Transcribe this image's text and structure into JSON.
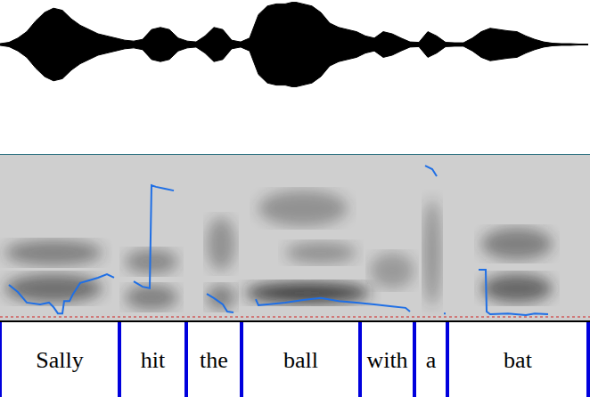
{
  "waveform": {
    "x": [
      0,
      0.025,
      0.05,
      0.075,
      0.1,
      0.125,
      0.15,
      0.175,
      0.2,
      0.225,
      0.25,
      0.275,
      0.3,
      0.325,
      0.35,
      0.375,
      0.4,
      0.425,
      0.45,
      0.475,
      0.5,
      0.525,
      0.55,
      0.575,
      0.6,
      0.625,
      0.65,
      0.675,
      0.7,
      0.725,
      0.75,
      0.775,
      0.8,
      0.825,
      0.85,
      0.875,
      0.9,
      0.925,
      0.95,
      0.975,
      1.0,
      1.025,
      1.05,
      1.075,
      1.1,
      1.125,
      1.15,
      1.175,
      1.2,
      1.225,
      1.25,
      1.275,
      1.3,
      1.325,
      1.35,
      1.375,
      1.4,
      1.425,
      1.45,
      1.475,
      1.5,
      1.525,
      1.55,
      1.575,
      1.6,
      1.625,
      1.65
    ],
    "envelope": [
      0.02,
      0.05,
      0.15,
      0.3,
      0.55,
      0.75,
      0.85,
      0.8,
      0.6,
      0.45,
      0.35,
      0.25,
      0.2,
      0.15,
      0.1,
      0.08,
      0.12,
      0.35,
      0.4,
      0.35,
      0.15,
      0.08,
      0.06,
      0.2,
      0.4,
      0.35,
      0.1,
      0.06,
      0.15,
      0.7,
      0.9,
      0.95,
      0.95,
      1.0,
      0.95,
      0.9,
      0.75,
      0.5,
      0.4,
      0.35,
      0.3,
      0.2,
      0.15,
      0.3,
      0.25,
      0.15,
      0.06,
      0.05,
      0.3,
      0.2,
      0.05,
      0.04,
      0.04,
      0.15,
      0.3,
      0.38,
      0.35,
      0.32,
      0.3,
      0.2,
      0.12,
      0.06,
      0.03,
      0.02,
      0.02,
      0.01,
      0.01
    ],
    "xlim": [
      0,
      1.655
    ],
    "ylim": [
      -1,
      1
    ],
    "color": "#000000"
  },
  "chart_data": {
    "type": "line",
    "x": [
      0.025,
      0.05,
      0.075,
      0.1125,
      0.1375,
      0.15,
      0.1625,
      0.175,
      0.18,
      0.195,
      0.205,
      0.225,
      0.25,
      0.275,
      0.3,
      0.32,
      0.33,
      0.375,
      0.4,
      0.42,
      0.425,
      0.4375,
      0.4625,
      0.4875,
      0.5,
      0.58,
      0.6,
      0.625,
      0.6375,
      0.655,
      0.67,
      0.7175,
      0.725,
      0.75,
      0.8,
      0.85,
      0.9,
      0.95,
      1.0,
      1.05,
      1.1,
      1.1375,
      1.15,
      1.16,
      1.1925,
      1.2125,
      1.225,
      1.235,
      1.245,
      1.25,
      1.3,
      1.3425,
      1.3625,
      1.365,
      1.375,
      1.425,
      1.475,
      1.5,
      1.5375
    ],
    "values": [
      160,
      141,
      113,
      108,
      113,
      101,
      84,
      84,
      117,
      117,
      136,
      165,
      172,
      179,
      188,
      179,
      null,
      169,
      155,
      151,
      424,
      420,
      415,
      410,
      null,
      136,
      125,
      108,
      89,
      87,
      null,
      122,
      106,
      108,
      113,
      120,
      125,
      117,
      113,
      108,
      103,
      99,
      89,
      null,
      476,
      467,
      448,
      null,
      84,
      84,
      null,
      200,
      200,
      89,
      82,
      84,
      80,
      84,
      82
    ],
    "color": "#1f6fe5",
    "xlim": [
      0,
      1.655
    ],
    "ylim": [
      75,
      500
    ],
    "tick_labels": false
  },
  "tier": {
    "words": [
      {
        "label": "Sally",
        "start": 0,
        "end": 0.335
      },
      {
        "label": "hit",
        "start": 0.335,
        "end": 0.5225
      },
      {
        "label": "the",
        "start": 0.5225,
        "end": 0.6775
      },
      {
        "label": "ball",
        "start": 0.6775,
        "end": 1.01
      },
      {
        "label": "with",
        "start": 1.01,
        "end": 1.1625
      },
      {
        "label": "a",
        "start": 1.1625,
        "end": 1.255
      },
      {
        "label": "bat",
        "start": 1.255,
        "end": 1.65
      }
    ],
    "color": "#0000dd"
  }
}
